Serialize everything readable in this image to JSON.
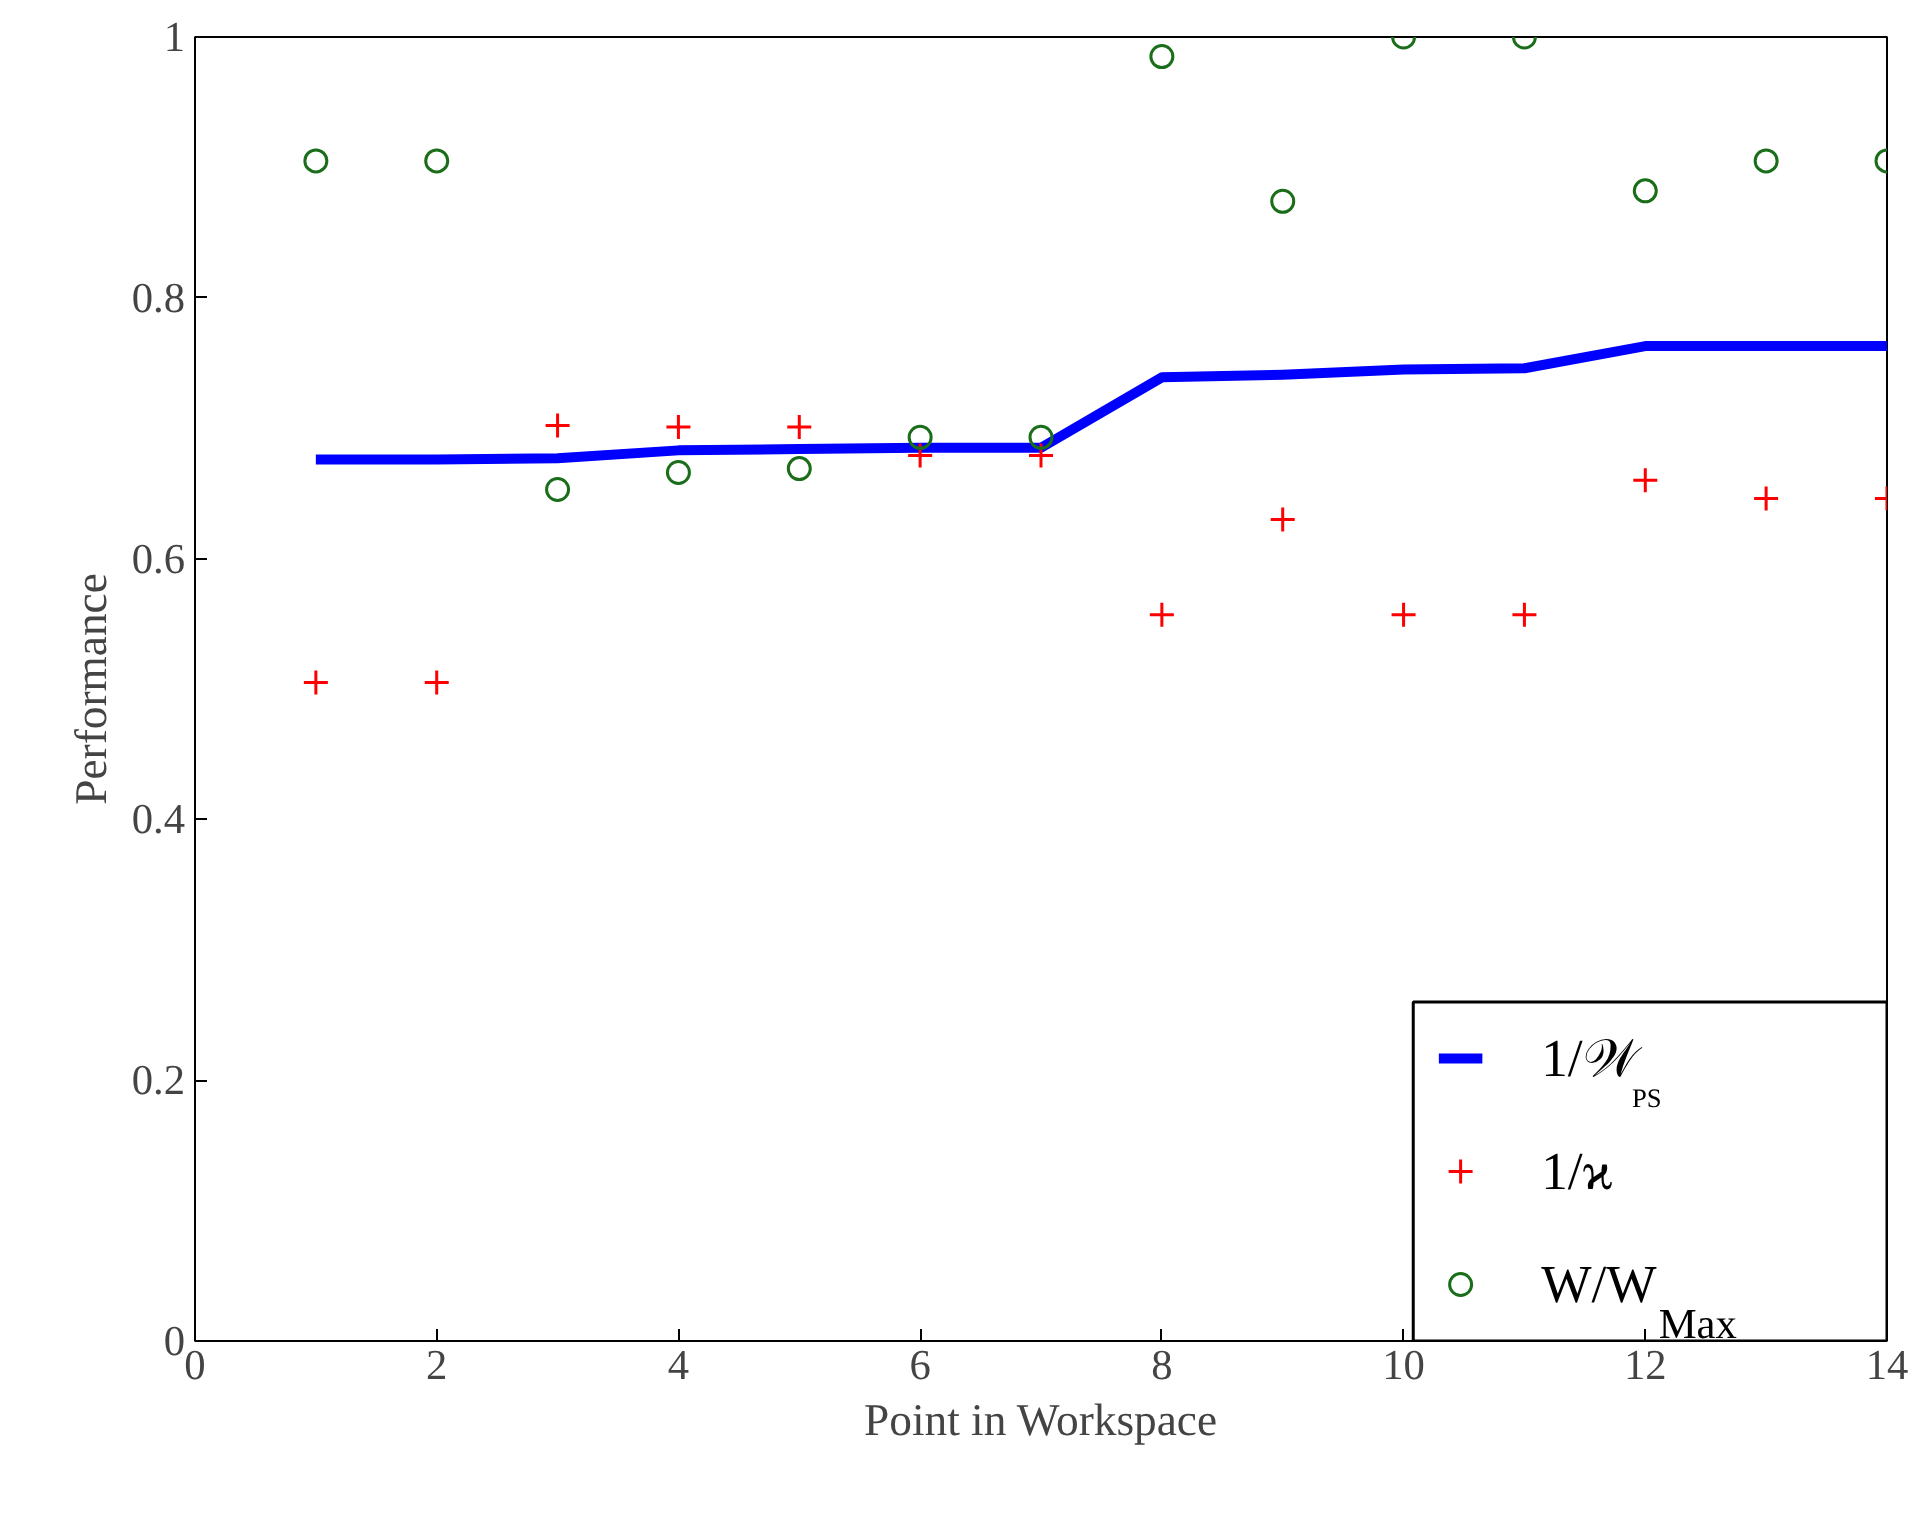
{
  "chart_data": {
    "type": "line",
    "xlabel": "Point in Workspace",
    "ylabel": "Performance",
    "x": [
      1,
      2,
      3,
      4,
      5,
      6,
      7,
      8,
      9,
      10,
      11,
      12,
      13,
      14
    ],
    "xlim": [
      0,
      14
    ],
    "xticks": [
      0,
      2,
      4,
      6,
      8,
      10,
      12,
      14
    ],
    "ylim": [
      0,
      1
    ],
    "yticks": [
      0,
      0.2,
      0.4,
      0.6,
      0.8,
      1
    ],
    "grid": false,
    "legend": "bottom right",
    "series": [
      {
        "name": "1/𝒲$_{PS}$",
        "color": "#0000ff",
        "line_style": "solid",
        "values": [
          0.676,
          0.676,
          0.677,
          0.683,
          0.684,
          0.685,
          0.685,
          0.739,
          0.741,
          0.745,
          0.746,
          0.763,
          0.763,
          0.763
        ]
      },
      {
        "name": "1/ϰ",
        "type": "scatter",
        "color": "#ff0000",
        "marker": "cross",
        "values": [
          0.505,
          0.505,
          0.702,
          0.701,
          0.701,
          0.679,
          0.679,
          0.557,
          0.63,
          0.557,
          0.557,
          0.66,
          0.646,
          0.646
        ]
      },
      {
        "name": "W/W$_{Max}$",
        "type": "scatter",
        "color": "#1a6e1a",
        "marker": "circle",
        "values": [
          0.905,
          0.905,
          0.653,
          0.666,
          0.669,
          0.693,
          0.693,
          0.985,
          0.874,
          1.0,
          1.0,
          0.882,
          0.905,
          0.905
        ]
      }
    ]
  }
}
